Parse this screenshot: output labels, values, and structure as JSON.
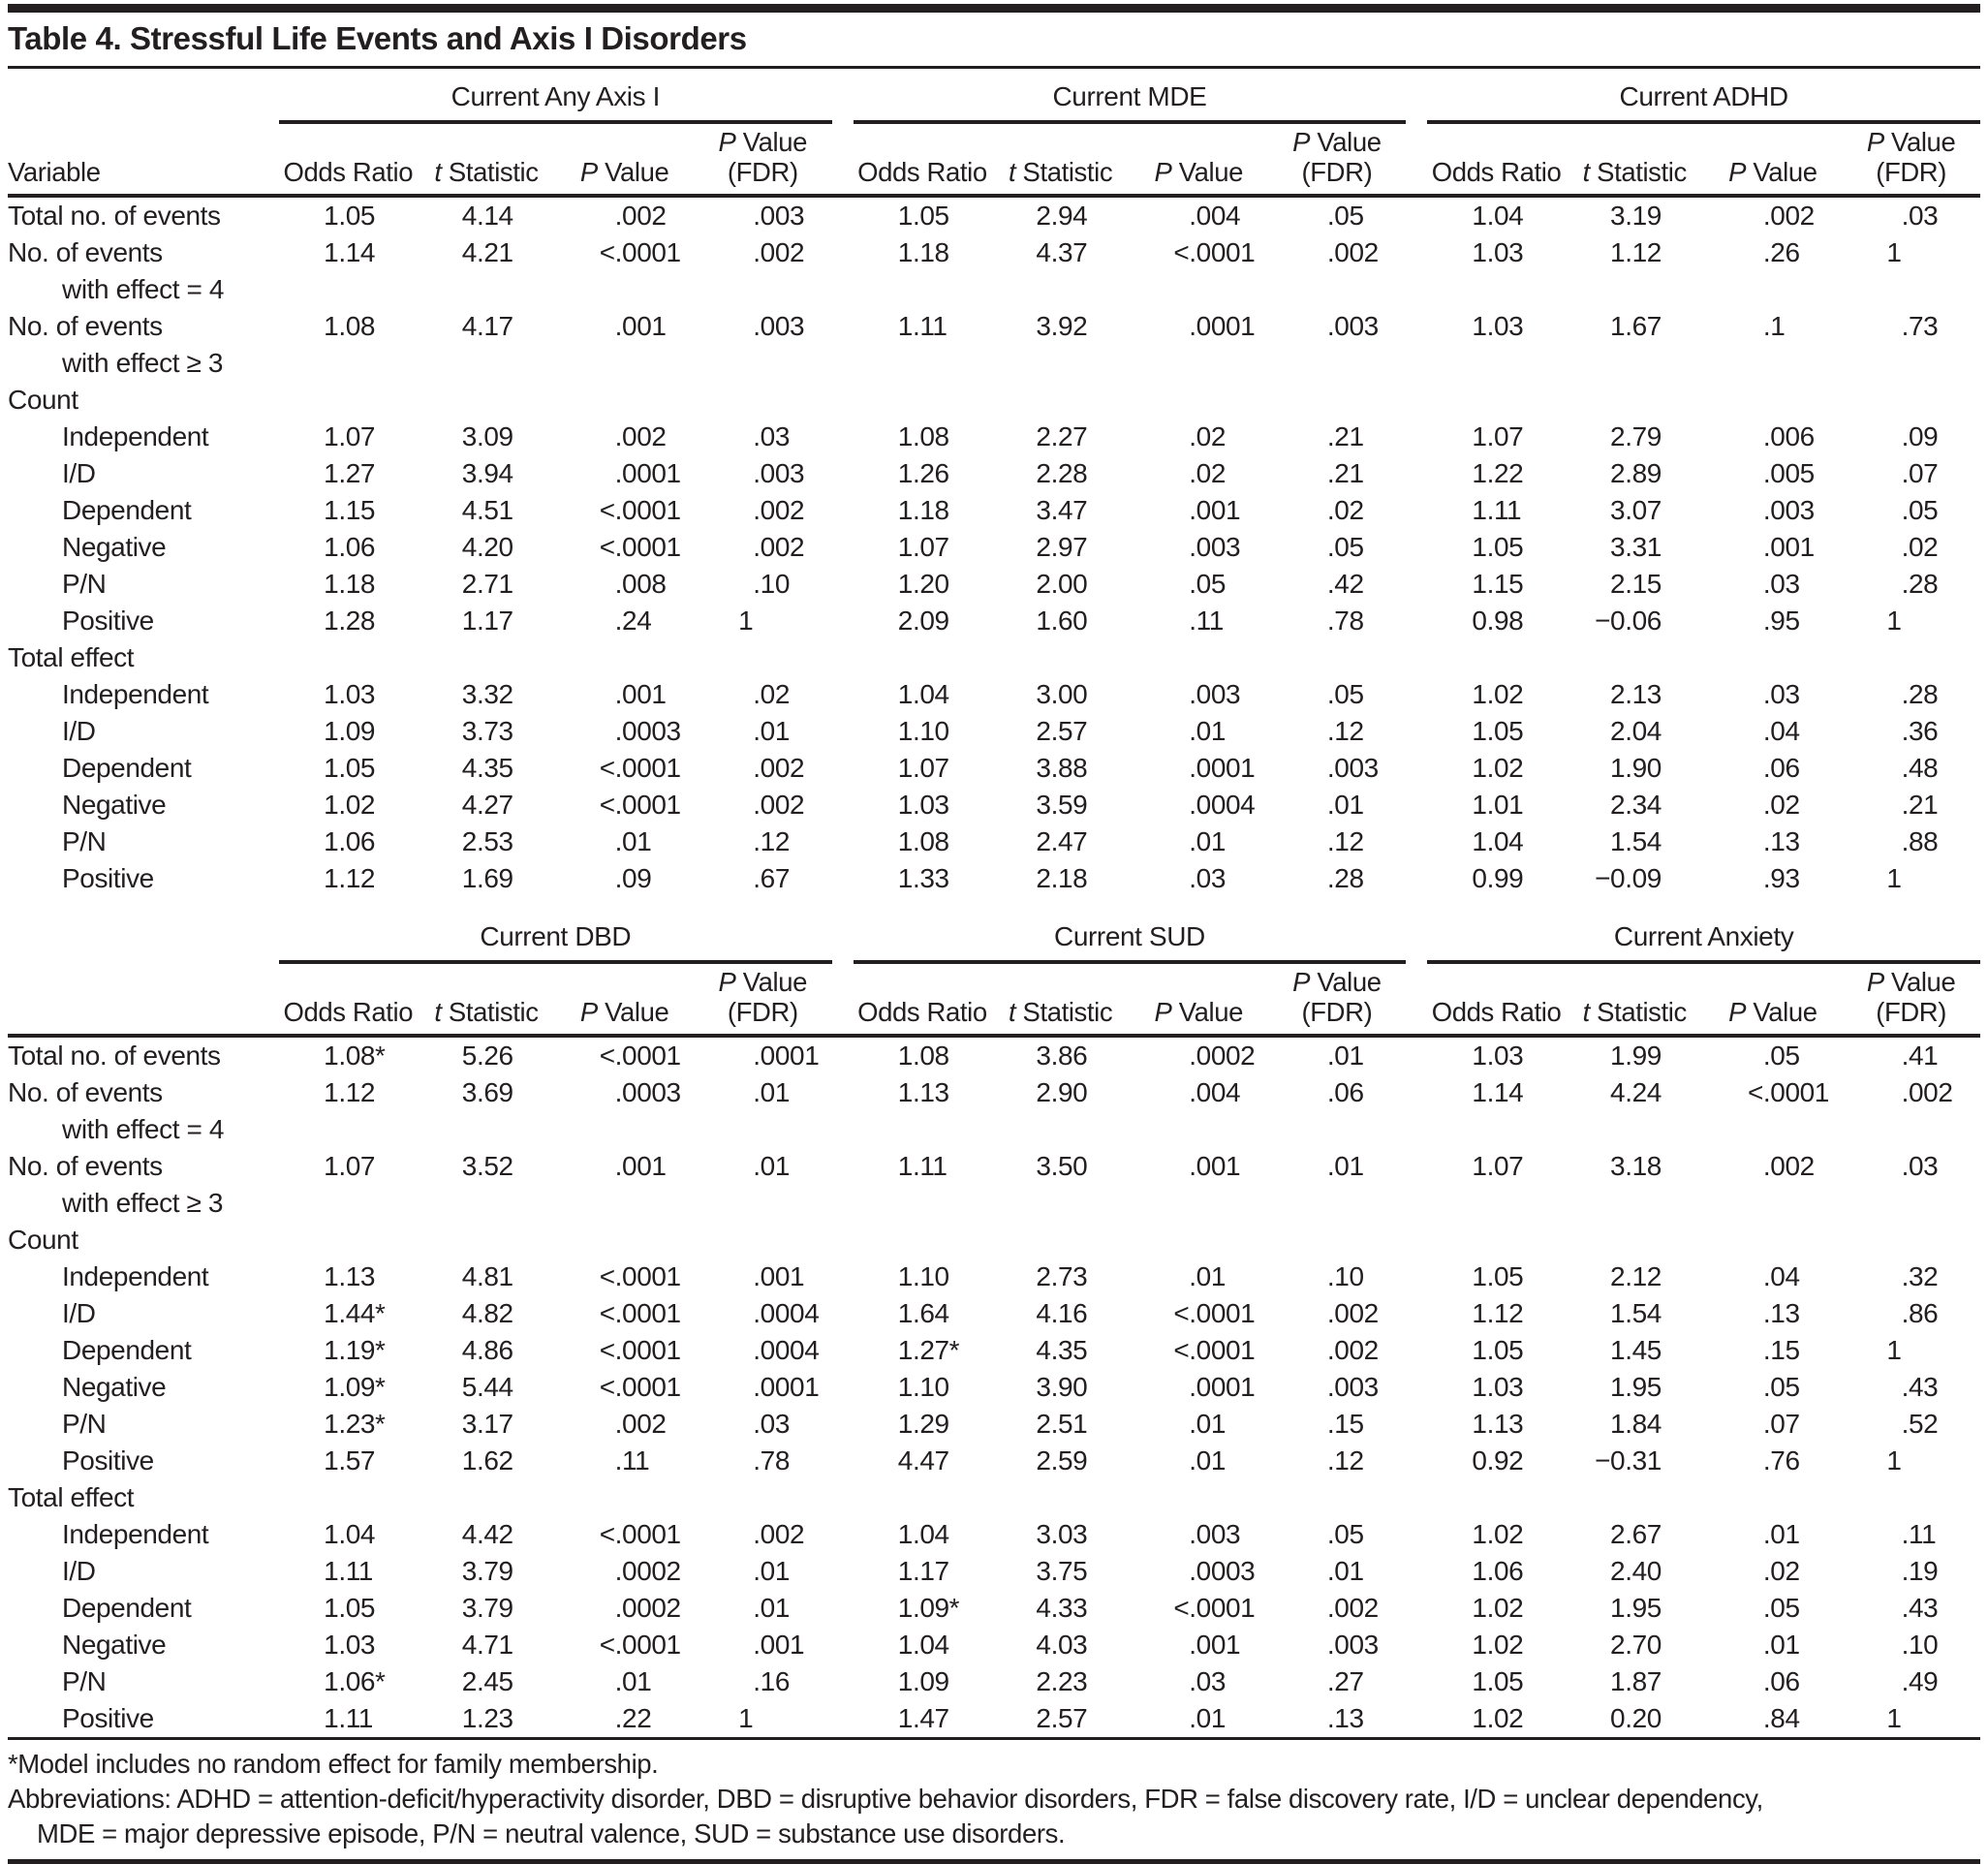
{
  "title": "Table 4. Stressful Life Events and Axis I Disorders",
  "colors": {
    "text": "#231f20",
    "rule": "#231f20",
    "background": "#ffffff"
  },
  "table": {
    "column_headers": [
      "Odds Ratio",
      "*t* Statistic",
      "*P* Value",
      "*P* Value|(FDR)"
    ],
    "halves": [
      {
        "stub_header": "Variable",
        "groups": [
          "Current Any Axis I",
          "Current MDE",
          "Current ADHD"
        ],
        "rows": [
          {
            "label": "Total no. of events",
            "cells": [
              "1.05",
              "4.14",
              ".002",
              ".003",
              "1.05",
              "2.94",
              ".004",
              ".05",
              "1.04",
              "3.19",
              ".002",
              ".03"
            ]
          },
          {
            "label": "No. of events",
            "cont": "with effect = 4",
            "cells": [
              "1.14",
              "4.21",
              "<.0001",
              ".002",
              "1.18",
              "4.37",
              "<.0001",
              ".002",
              "1.03",
              "1.12",
              ".26",
              "1"
            ]
          },
          {
            "label": "No. of events",
            "cont": "with effect ≥ 3",
            "cells": [
              "1.08",
              "4.17",
              ".001",
              ".003",
              "1.11",
              "3.92",
              ".0001",
              ".003",
              "1.03",
              "1.67",
              ".1",
              ".73"
            ]
          },
          {
            "label": "Count",
            "section": true
          },
          {
            "label": "Independent",
            "indent": true,
            "cells": [
              "1.07",
              "3.09",
              ".002",
              ".03",
              "1.08",
              "2.27",
              ".02",
              ".21",
              "1.07",
              "2.79",
              ".006",
              ".09"
            ]
          },
          {
            "label": "I/D",
            "indent": true,
            "cells": [
              "1.27",
              "3.94",
              ".0001",
              ".003",
              "1.26",
              "2.28",
              ".02",
              ".21",
              "1.22",
              "2.89",
              ".005",
              ".07"
            ]
          },
          {
            "label": "Dependent",
            "indent": true,
            "cells": [
              "1.15",
              "4.51",
              "<.0001",
              ".002",
              "1.18",
              "3.47",
              ".001",
              ".02",
              "1.11",
              "3.07",
              ".003",
              ".05"
            ]
          },
          {
            "label": "Negative",
            "indent": true,
            "cells": [
              "1.06",
              "4.20",
              "<.0001",
              ".002",
              "1.07",
              "2.97",
              ".003",
              ".05",
              "1.05",
              "3.31",
              ".001",
              ".02"
            ]
          },
          {
            "label": "P/N",
            "indent": true,
            "cells": [
              "1.18",
              "2.71",
              ".008",
              ".10",
              "1.20",
              "2.00",
              ".05",
              ".42",
              "1.15",
              "2.15",
              ".03",
              ".28"
            ]
          },
          {
            "label": "Positive",
            "indent": true,
            "cells": [
              "1.28",
              "1.17",
              ".24",
              "1",
              "2.09",
              "1.60",
              ".11",
              ".78",
              "0.98",
              "−0.06",
              ".95",
              "1"
            ]
          },
          {
            "label": "Total effect",
            "section": true
          },
          {
            "label": "Independent",
            "indent": true,
            "cells": [
              "1.03",
              "3.32",
              ".001",
              ".02",
              "1.04",
              "3.00",
              ".003",
              ".05",
              "1.02",
              "2.13",
              ".03",
              ".28"
            ]
          },
          {
            "label": "I/D",
            "indent": true,
            "cells": [
              "1.09",
              "3.73",
              ".0003",
              ".01",
              "1.10",
              "2.57",
              ".01",
              ".12",
              "1.05",
              "2.04",
              ".04",
              ".36"
            ]
          },
          {
            "label": "Dependent",
            "indent": true,
            "cells": [
              "1.05",
              "4.35",
              "<.0001",
              ".002",
              "1.07",
              "3.88",
              ".0001",
              ".003",
              "1.02",
              "1.90",
              ".06",
              ".48"
            ]
          },
          {
            "label": "Negative",
            "indent": true,
            "cells": [
              "1.02",
              "4.27",
              "<.0001",
              ".002",
              "1.03",
              "3.59",
              ".0004",
              ".01",
              "1.01",
              "2.34",
              ".02",
              ".21"
            ]
          },
          {
            "label": "P/N",
            "indent": true,
            "cells": [
              "1.06",
              "2.53",
              ".01",
              ".12",
              "1.08",
              "2.47",
              ".01",
              ".12",
              "1.04",
              "1.54",
              ".13",
              ".88"
            ]
          },
          {
            "label": "Positive",
            "indent": true,
            "cells": [
              "1.12",
              "1.69",
              ".09",
              ".67",
              "1.33",
              "2.18",
              ".03",
              ".28",
              "0.99",
              "−0.09",
              ".93",
              "1"
            ]
          }
        ]
      },
      {
        "stub_header": "",
        "groups": [
          "Current DBD",
          "Current SUD",
          "Current Anxiety"
        ],
        "rows": [
          {
            "label": "Total no. of events",
            "cells": [
              "1.08*",
              "5.26",
              "<.0001",
              ".0001",
              "1.08",
              "3.86",
              ".0002",
              ".01",
              "1.03",
              "1.99",
              ".05",
              ".41"
            ]
          },
          {
            "label": "No. of events",
            "cont": "with effect = 4",
            "cells": [
              "1.12",
              "3.69",
              ".0003",
              ".01",
              "1.13",
              "2.90",
              ".004",
              ".06",
              "1.14",
              "4.24",
              "<.0001",
              ".002"
            ]
          },
          {
            "label": "No. of events",
            "cont": "with effect ≥ 3",
            "cells": [
              "1.07",
              "3.52",
              ".001",
              ".01",
              "1.11",
              "3.50",
              ".001",
              ".01",
              "1.07",
              "3.18",
              ".002",
              ".03"
            ]
          },
          {
            "label": "Count",
            "section": true
          },
          {
            "label": "Independent",
            "indent": true,
            "cells": [
              "1.13",
              "4.81",
              "<.0001",
              ".001",
              "1.10",
              "2.73",
              ".01",
              ".10",
              "1.05",
              "2.12",
              ".04",
              ".32"
            ]
          },
          {
            "label": "I/D",
            "indent": true,
            "cells": [
              "1.44*",
              "4.82",
              "<.0001",
              ".0004",
              "1.64",
              "4.16",
              "<.0001",
              ".002",
              "1.12",
              "1.54",
              ".13",
              ".86"
            ]
          },
          {
            "label": "Dependent",
            "indent": true,
            "cells": [
              "1.19*",
              "4.86",
              "<.0001",
              ".0004",
              "1.27*",
              "4.35",
              "<.0001",
              ".002",
              "1.05",
              "1.45",
              ".15",
              "1"
            ]
          },
          {
            "label": "Negative",
            "indent": true,
            "cells": [
              "1.09*",
              "5.44",
              "<.0001",
              ".0001",
              "1.10",
              "3.90",
              ".0001",
              ".003",
              "1.03",
              "1.95",
              ".05",
              ".43"
            ]
          },
          {
            "label": "P/N",
            "indent": true,
            "cells": [
              "1.23*",
              "3.17",
              ".002",
              ".03",
              "1.29",
              "2.51",
              ".01",
              ".15",
              "1.13",
              "1.84",
              ".07",
              ".52"
            ]
          },
          {
            "label": "Positive",
            "indent": true,
            "cells": [
              "1.57",
              "1.62",
              ".11",
              ".78",
              "4.47",
              "2.59",
              ".01",
              ".12",
              "0.92",
              "−0.31",
              ".76",
              "1"
            ]
          },
          {
            "label": "Total effect",
            "section": true
          },
          {
            "label": "Independent",
            "indent": true,
            "cells": [
              "1.04",
              "4.42",
              "<.0001",
              ".002",
              "1.04",
              "3.03",
              ".003",
              ".05",
              "1.02",
              "2.67",
              ".01",
              ".11"
            ]
          },
          {
            "label": "I/D",
            "indent": true,
            "cells": [
              "1.11",
              "3.79",
              ".0002",
              ".01",
              "1.17",
              "3.75",
              ".0003",
              ".01",
              "1.06",
              "2.40",
              ".02",
              ".19"
            ]
          },
          {
            "label": "Dependent",
            "indent": true,
            "cells": [
              "1.05",
              "3.79",
              ".0002",
              ".01",
              "1.09*",
              "4.33",
              "<.0001",
              ".002",
              "1.02",
              "1.95",
              ".05",
              ".43"
            ]
          },
          {
            "label": "Negative",
            "indent": true,
            "cells": [
              "1.03",
              "4.71",
              "<.0001",
              ".001",
              "1.04",
              "4.03",
              ".001",
              ".003",
              "1.02",
              "2.70",
              ".01",
              ".10"
            ]
          },
          {
            "label": "P/N",
            "indent": true,
            "cells": [
              "1.06*",
              "2.45",
              ".01",
              ".16",
              "1.09",
              "2.23",
              ".03",
              ".27",
              "1.05",
              "1.87",
              ".06",
              ".49"
            ]
          },
          {
            "label": "Positive",
            "indent": true,
            "cells": [
              "1.11",
              "1.23",
              ".22",
              "1",
              "1.47",
              "2.57",
              ".01",
              ".13",
              "1.02",
              "0.20",
              ".84",
              "1"
            ]
          }
        ]
      }
    ]
  },
  "footnotes": [
    "*Model includes no random effect for family membership.",
    "Abbreviations: ADHD = attention-deficit/hyperactivity disorder, DBD = disruptive behavior disorders, FDR = false discovery rate, I/D = unclear dependency,",
    "MDE = major depressive episode, P/N = neutral valence, SUD = substance use disorders."
  ]
}
